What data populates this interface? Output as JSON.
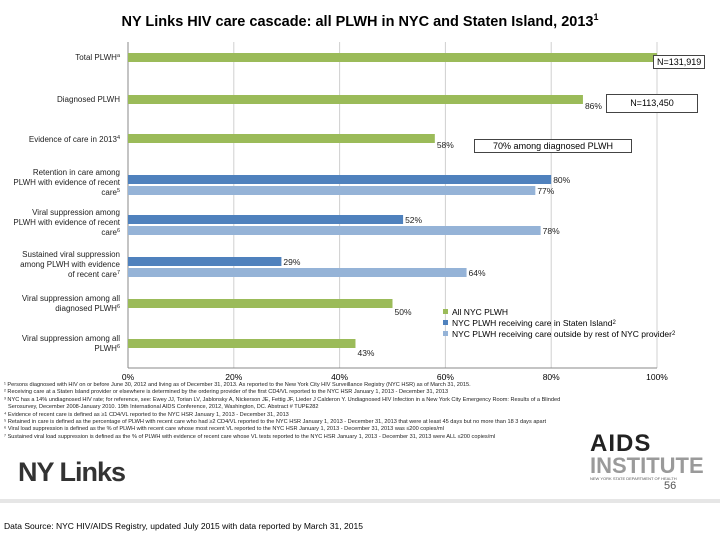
{
  "title": "NY Links HIV care cascade: all PLWH in NYC and Staten Island, 2013",
  "title_sup": "1",
  "chart_data": {
    "type": "bar",
    "orientation": "horizontal",
    "title": "NY Links HIV care cascade: all PLWH in NYC and Staten Island, 2013",
    "xlim": [
      0,
      100
    ],
    "x_ticks": [
      "0%",
      "20%",
      "40%",
      "60%",
      "80%",
      "100%"
    ],
    "categories": [
      {
        "label": "Total PLWH",
        "sup": "a",
        "lines": [
          "Total PLWH"
        ]
      },
      {
        "label": "Diagnosed PLWH",
        "sup": "",
        "lines": [
          "Diagnosed PLWH"
        ]
      },
      {
        "label": "Evidence of care in 2013",
        "sup": "4",
        "lines": [
          "Evidence of care in 2013"
        ]
      },
      {
        "label": "Retention in care among PLWH with evidence of recent care",
        "sup": "5",
        "lines": [
          "Retention in care among",
          "PLWH with evidence of recent",
          "care"
        ]
      },
      {
        "label": "Viral suppression among PLWH with evidence of recent care",
        "sup": "6",
        "lines": [
          "Viral suppression among",
          "PLWH with evidence of recent",
          "care"
        ]
      },
      {
        "label": "Sustained viral suppression among PLWH with evidence of recent care",
        "sup": "7",
        "lines": [
          "Sustained viral suppression",
          "among PLWH with evidence",
          "of recent care"
        ]
      },
      {
        "label": "Viral suppression among all diagnosed PLWH",
        "sup": "6",
        "lines": [
          "Viral suppression among all",
          "diagnosed PLWH"
        ]
      },
      {
        "label": "Viral suppression among all PLWH",
        "sup": "6",
        "lines": [
          "Viral suppression among all",
          "PLWH"
        ]
      }
    ],
    "series": [
      {
        "name": "All NYC PLWH",
        "color": "#9bbb59",
        "values": [
          100,
          86,
          58,
          null,
          null,
          null,
          50,
          43
        ],
        "labels": [
          "",
          "86%",
          "58%",
          "",
          "",
          "",
          "50%",
          "43%"
        ]
      },
      {
        "name": "NYC PLWH receiving care in Staten Island",
        "sup": "2",
        "color": "#4f81bd",
        "values": [
          null,
          null,
          null,
          80,
          52,
          29,
          null,
          null
        ],
        "labels": [
          "",
          "",
          "",
          "80%",
          "52%",
          "29%",
          "",
          ""
        ]
      },
      {
        "name": "NYC PLWH receiving care outside by rest of NYC provider",
        "sup": "2",
        "color": "#95b3d7",
        "values": [
          null,
          null,
          null,
          77,
          78,
          64,
          null,
          null
        ],
        "labels": [
          "",
          "",
          "",
          "77%",
          "78%",
          "64%",
          "",
          ""
        ]
      }
    ],
    "annotations": [
      "N=131,919",
      "N=113,450",
      "70% among diagnosed PLWH"
    ],
    "legend_position": "right"
  },
  "footnotes": [
    {
      "text": "¹ Persons diagnosed with HIV on or before June 30, 2012 and living as of December 31, 2013. As reported to the New York City HIV Surveillance Registry (NYC HSR) as of March 31, 2015."
    },
    {
      "text": "² Receiving care at a Staten Island provider or elsewhere is determined by the ordering provider of the first CD4/VL reported to the NYC HSR January 1, 2013 - December 31, 2013"
    },
    {
      "text": "³ NYC has a 14% undiagnosed HIV rate; for reference, see: Ewey JJ, Torian LV, Jablonsky A, Nickerson JE, Fettig JF, Lieder J Calderon Y. Undiagnosed HIV Infection in a New York City Emergency Room: Results of a Blinded"
    },
    {
      "text": "Serosurvey, December 2008-January 2010. 19th International AIDS Conference, 2012, Washington, DC. Abstract # TUPE282"
    },
    {
      "text": "⁴ Evidence of recent care is defined as ≥1 CD4/VL reported to the NYC HSR January 1, 2013 - December 31, 2013"
    },
    {
      "text": "⁵ Retained in care is defined as the percentage of PLWH with recent care who had ≥2 CD4/VL reported to the NYC HSR January 1, 2013 - December 31, 2013 that were at least 45 days but no more than 18 3 days apart",
      "wrap": true
    },
    {
      "text": "⁶ Viral load suppression is defined as the % of PLWH with recent care whose most recent VL reported to the NYC HSR January 1, 2013 - December 31, 2013 was ≤200 copies/ml"
    },
    {
      "text": "⁷ Sustained viral load suppression is defined as the % of PLWH with evidence of recent care whose VL tests reported to the NYC HSR January 1, 2013 - December 31, 2013 were ALL ≤200 copies/ml"
    }
  ],
  "logos": {
    "left": "NY Links",
    "right_line1": "AIDS",
    "right_line2": "INSTITUTE",
    "right_tagline": "NEW YORK STATE DEPARTMENT OF HEALTH"
  },
  "page_number": "56",
  "source": "Data Source: NYC HIV/AIDS Registry, updated July 2015 with data reported by March 31, 2015"
}
